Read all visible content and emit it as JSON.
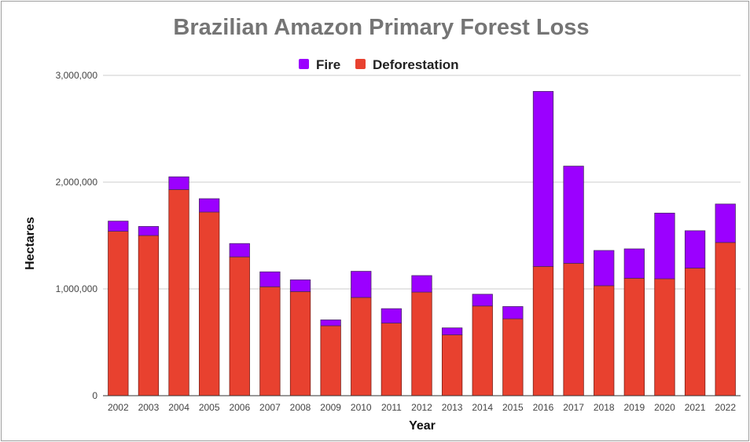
{
  "chart_data": {
    "type": "bar",
    "stacked": true,
    "title": "Brazilian Amazon Primary Forest Loss",
    "xlabel": "Year",
    "ylabel": "Hectares",
    "ylim": [
      0,
      3000000
    ],
    "yticks": [
      "0",
      "1,000,000",
      "2,000,000",
      "3,000,000"
    ],
    "ytick_values": [
      0,
      1000000,
      2000000,
      3000000
    ],
    "grid": true,
    "legend_position": "top",
    "categories": [
      "2002",
      "2003",
      "2004",
      "2005",
      "2006",
      "2007",
      "2008",
      "2009",
      "2010",
      "2011",
      "2012",
      "2013",
      "2014",
      "2015",
      "2016",
      "2017",
      "2018",
      "2019",
      "2020",
      "2021",
      "2022"
    ],
    "series": [
      {
        "name": "Deforestation",
        "color": "#e8412f",
        "values": [
          1540000,
          1500000,
          1930000,
          1720000,
          1300000,
          1020000,
          975000,
          655000,
          920000,
          680000,
          970000,
          570000,
          840000,
          720000,
          1210000,
          1240000,
          1030000,
          1100000,
          1095000,
          1195000,
          1435000
        ]
      },
      {
        "name": "Fire",
        "color": "#9b00ff",
        "values": [
          95000,
          85000,
          120000,
          125000,
          125000,
          140000,
          110000,
          55000,
          245000,
          135000,
          155000,
          65000,
          110000,
          115000,
          1640000,
          910000,
          330000,
          275000,
          615000,
          350000,
          360000
        ]
      }
    ]
  }
}
